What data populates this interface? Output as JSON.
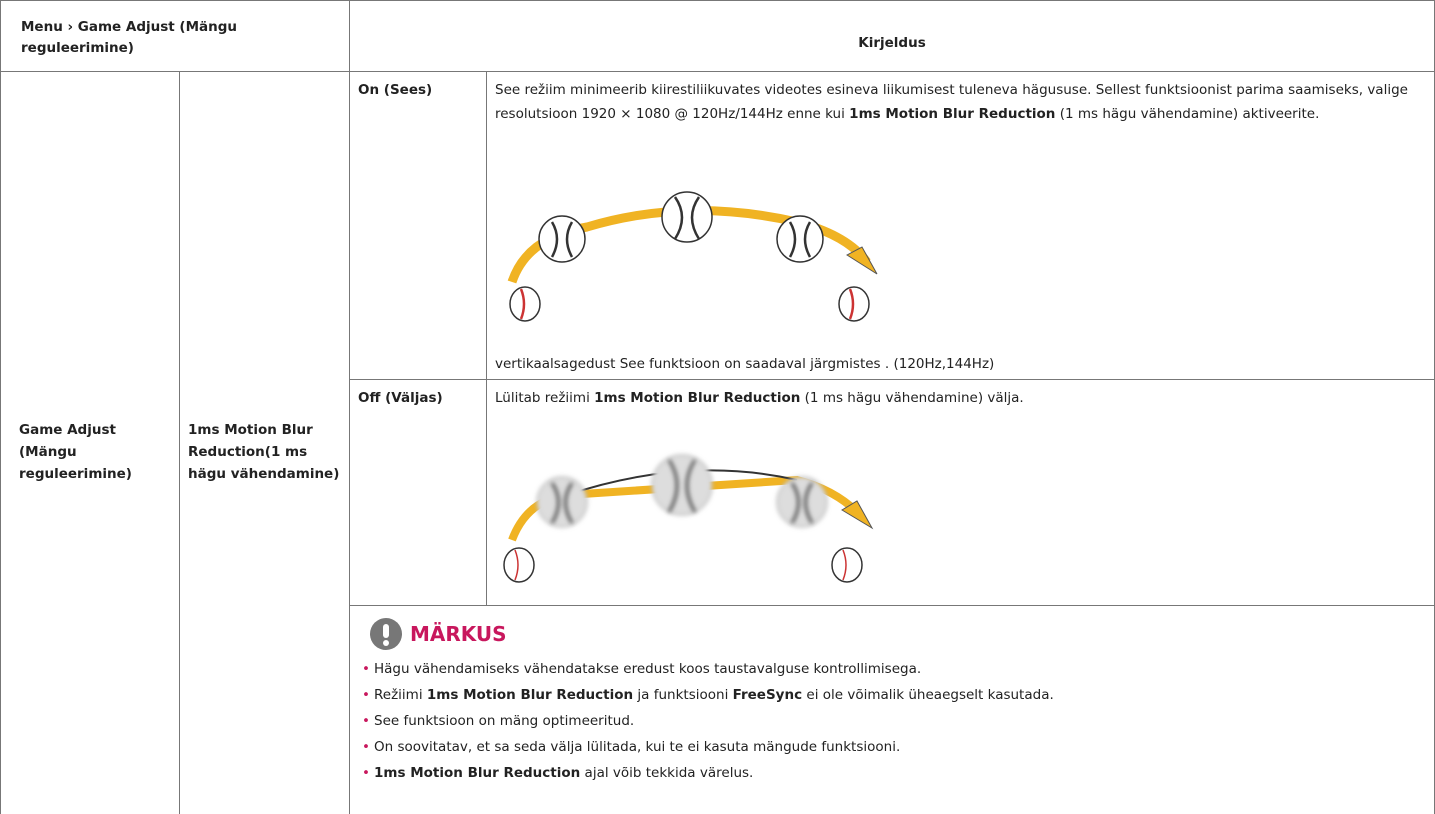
{
  "header": {
    "title": "Menu › Game Adjust (Mängu reguleerimine)",
    "description": "Kirjeldus"
  },
  "section": "Game Adjust (Mängu reguleerimine)",
  "feature": "1ms Motion Blur Reduction(1 ms hägu vähendamine)",
  "options": [
    {
      "label": "On (Sees)",
      "text": [
        "See režiim minimeerib kiirestiliikuvates videotes esineva liikumisest tuleneva hägususe. Sellest funktsioonist parima saamiseks, valige resolutsioon 1920 × 1080 @ 120Hz/144Hz enne kui ",
        {
          "text": "1ms Motion Blur Reduction",
          "bold": true
        },
        " (1 ms hägu vähendamine) aktiveerite."
      ],
      "footer": "vertikaalsagedust See funktsioon on saadaval järgmistes . (120Hz,144Hz)"
    },
    {
      "label": "Off (Väljas)",
      "text": [
        "Lülitab režiimi ",
        {
          "text": "1ms Motion Blur Reduction",
          "bold": true
        },
        " (1 ms hägu vähendamine) välja."
      ]
    }
  ],
  "note": {
    "title": "MÄRKUS",
    "items": [
      [
        "Hägu vähendamiseks vähendatakse eredust koos taustavalguse kontrollimisega."
      ],
      [
        "Režiimi ",
        {
          "text": "1ms Motion Blur Reduction",
          "bold": true
        },
        " ja funktsiooni ",
        {
          "text": "FreeSync",
          "bold": true
        },
        " ei ole võimalik üheaegselt kasutada."
      ],
      [
        "See funktsioon on mäng optimeeritud."
      ],
      [
        "On soovitatav, et sa seda välja lülitada, kui te ei kasuta mängude funktsiooni."
      ],
      [
        {
          "text": "1ms Motion Blur Reduction",
          "bold": true
        },
        " ajal võib tekkida värelus."
      ]
    ]
  }
}
